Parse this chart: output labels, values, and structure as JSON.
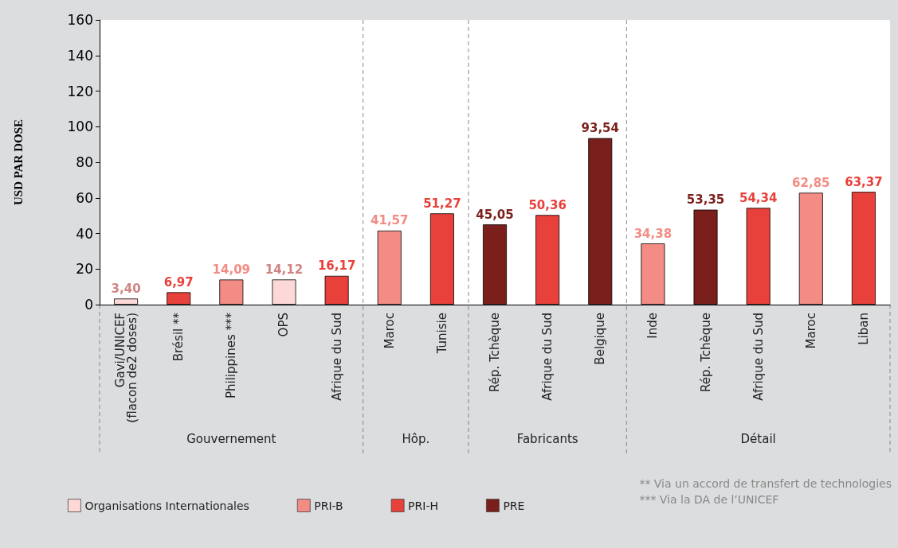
{
  "chart_data": {
    "type": "bar",
    "ylabel": "USD PAR DOSE",
    "stacked": true,
    "legend": "bottom",
    "ylim": [
      0,
      160
    ],
    "yticks": [
      0,
      20,
      40,
      60,
      80,
      100,
      120,
      140,
      160
    ],
    "categories": [
      "Gavi/UNICEF\n(flacon de2 doses)",
      "Brésil **",
      "Philippines ***",
      "OPS",
      "Afrique du Sud",
      "Maroc",
      "Tunisie",
      "Rép. Tchèque",
      "Afrique du Sud",
      "Belgique",
      "Inde",
      "Rép. Tchèque",
      "Afrique du Sud",
      "Maroc",
      "Liban"
    ],
    "series": [
      {
        "name": "Organisations Internationales",
        "color": "#fcd9d7",
        "values": [
          3.4,
          null,
          null,
          14.12,
          null,
          null,
          null,
          null,
          null,
          null,
          null,
          null,
          null,
          null,
          null
        ],
        "value_labels": [
          "3,40",
          null,
          null,
          "14,12",
          null,
          null,
          null,
          null,
          null,
          null,
          null,
          null,
          null,
          null,
          null
        ]
      },
      {
        "name": "PRI-B",
        "color": "#f28c85",
        "values": [
          null,
          null,
          14.09,
          null,
          null,
          41.57,
          null,
          null,
          null,
          null,
          34.38,
          null,
          null,
          62.85,
          null
        ],
        "value_labels": [
          null,
          null,
          "14,09",
          null,
          null,
          "41,57",
          null,
          null,
          null,
          null,
          "34,38",
          null,
          null,
          "62,85",
          null
        ]
      },
      {
        "name": "PRI-H",
        "color": "#e8403a",
        "values": [
          null,
          6.97,
          null,
          null,
          16.17,
          null,
          51.27,
          null,
          50.36,
          null,
          null,
          null,
          54.34,
          null,
          63.37
        ],
        "value_labels": [
          null,
          "6,97",
          null,
          null,
          "16,17",
          null,
          "51,27",
          null,
          "50,36",
          null,
          null,
          null,
          "54,34",
          null,
          "63,37"
        ]
      },
      {
        "name": "PRE",
        "color": "#7b1f1c",
        "values": [
          null,
          null,
          null,
          null,
          null,
          null,
          null,
          45.05,
          null,
          93.54,
          null,
          53.35,
          null,
          null,
          null
        ],
        "value_labels": [
          null,
          null,
          null,
          null,
          null,
          null,
          null,
          "45,05",
          null,
          "93,54",
          null,
          "53,35",
          null,
          null,
          null
        ]
      }
    ],
    "annotations": [
      "Gouvernement",
      "Hôp.",
      "Fabricants",
      "Détail",
      "** Via un accord de transfert de technologies\n*** Via la DA de l’UNICEF"
    ]
  }
}
